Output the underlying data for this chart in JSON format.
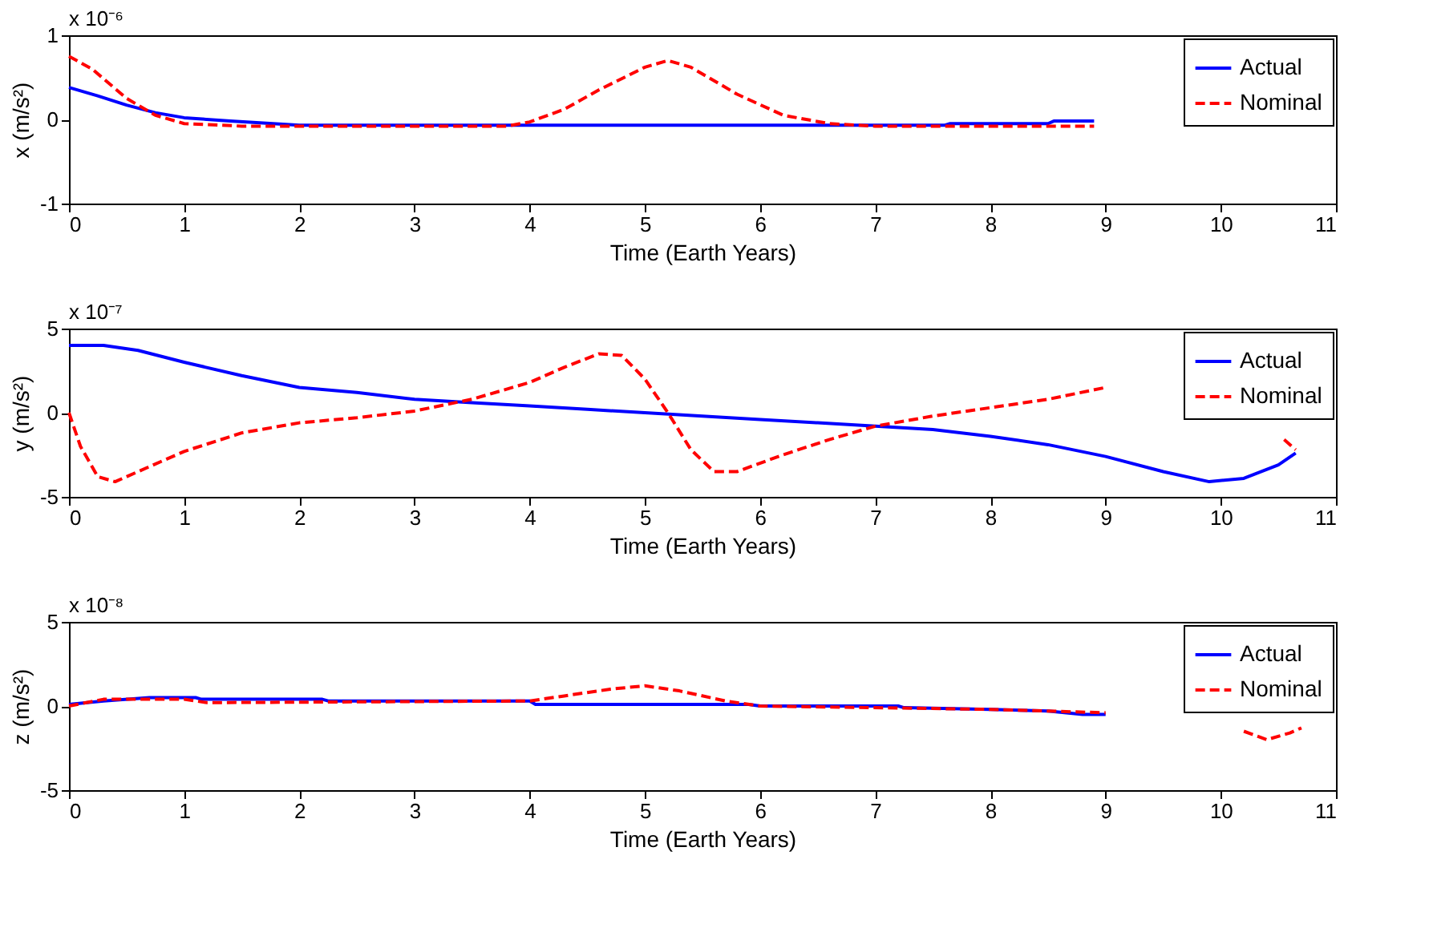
{
  "chart_data": [
    {
      "type": "line",
      "xlabel": "Time (Earth Years)",
      "ylabel": "x (m/s²)",
      "annotations": [
        "x 10⁻⁶"
      ],
      "xlim": [
        0,
        11
      ],
      "xticks": [
        0,
        1,
        2,
        3,
        4,
        5,
        6,
        7,
        8,
        9,
        10,
        11
      ],
      "ylim": [
        -1,
        1
      ],
      "yticks": [
        -1,
        0,
        1
      ],
      "legend": "top right",
      "series": [
        {
          "name": "Actual",
          "color": "#0000ff",
          "line_style": "solid",
          "x": [
            0,
            0.25,
            0.5,
            0.75,
            1,
            1.4,
            2,
            3,
            4,
            5,
            6,
            7,
            7.6,
            7.65,
            8.5,
            8.55,
            8.9
          ],
          "values": [
            0.38,
            0.28,
            0.17,
            0.08,
            0.02,
            -0.02,
            -0.07,
            -0.07,
            -0.07,
            -0.07,
            -0.07,
            -0.07,
            -0.07,
            -0.05,
            -0.05,
            -0.02,
            -0.02
          ]
        },
        {
          "name": "Nominal",
          "color": "#ff0000",
          "line_style": "dashed",
          "x": [
            0,
            0.2,
            0.5,
            0.75,
            1,
            1.5,
            2,
            3,
            3.8,
            4,
            4.3,
            4.6,
            5,
            5.2,
            5.4,
            5.8,
            6.2,
            6.6,
            7,
            8,
            8.9
          ],
          "values": [
            0.75,
            0.6,
            0.25,
            0.05,
            -0.05,
            -0.08,
            -0.08,
            -0.08,
            -0.08,
            -0.03,
            0.12,
            0.35,
            0.62,
            0.7,
            0.62,
            0.3,
            0.05,
            -0.05,
            -0.08,
            -0.08,
            -0.08
          ]
        }
      ]
    },
    {
      "type": "line",
      "xlabel": "Time (Earth Years)",
      "ylabel": "y (m/s²)",
      "annotations": [
        "x 10⁻⁷"
      ],
      "xlim": [
        0,
        11
      ],
      "xticks": [
        0,
        1,
        2,
        3,
        4,
        5,
        6,
        7,
        8,
        9,
        10,
        11
      ],
      "ylim": [
        -5,
        5
      ],
      "yticks": [
        -5,
        0,
        5
      ],
      "legend": "top right",
      "series": [
        {
          "name": "Actual",
          "color": "#0000ff",
          "line_style": "solid",
          "x": [
            0,
            0.3,
            0.6,
            1,
            1.5,
            2,
            2.5,
            3,
            3.5,
            4,
            4.5,
            5,
            5.5,
            6,
            6.5,
            7,
            7.5,
            8,
            8.5,
            9,
            9.5,
            9.9,
            10.2,
            10.5,
            10.65
          ],
          "values": [
            4,
            4,
            3.7,
            3.0,
            2.2,
            1.5,
            1.2,
            0.8,
            0.6,
            0.4,
            0.2,
            0,
            -0.2,
            -0.4,
            -0.6,
            -0.8,
            -1.0,
            -1.4,
            -1.9,
            -2.6,
            -3.5,
            -4.1,
            -3.9,
            -3.1,
            -2.4
          ]
        },
        {
          "name": "Nominal",
          "color": "#ff0000",
          "line_style": "dashed",
          "x": [
            0,
            0.1,
            0.25,
            0.4,
            0.7,
            1,
            1.5,
            2,
            2.5,
            3,
            3.5,
            4,
            4.3,
            4.6,
            4.8,
            5,
            5.2,
            5.4,
            5.6,
            5.8,
            6.2,
            6.6,
            7,
            7.5,
            8,
            8.5,
            9,
            9.8,
            10.55,
            10.65
          ],
          "values": [
            0,
            -2,
            -3.8,
            -4.1,
            -3.2,
            -2.3,
            -1.2,
            -0.6,
            -0.3,
            0.1,
            0.8,
            1.8,
            2.7,
            3.5,
            3.4,
            2.0,
            0,
            -2.2,
            -3.5,
            -3.5,
            -2.5,
            -1.6,
            -0.8,
            -0.2,
            0.3,
            0.8,
            1.5,
            null,
            -1.6,
            -2.2
          ]
        }
      ]
    },
    {
      "type": "line",
      "xlabel": "Time (Earth Years)",
      "ylabel": "z (m/s²)",
      "annotations": [
        "x 10⁻⁸"
      ],
      "xlim": [
        0,
        11
      ],
      "xticks": [
        0,
        1,
        2,
        3,
        4,
        5,
        6,
        7,
        8,
        9,
        10,
        11
      ],
      "ylim": [
        -5,
        5
      ],
      "yticks": [
        -5,
        0,
        5
      ],
      "legend": "top right",
      "series": [
        {
          "name": "Actual",
          "color": "#0000ff",
          "line_style": "solid",
          "x": [
            0,
            0.3,
            0.7,
            1.1,
            1.15,
            2.2,
            2.25,
            4,
            4.05,
            5.9,
            6,
            7.2,
            7.25,
            8,
            8.5,
            8.8,
            9
          ],
          "values": [
            0.1,
            0.3,
            0.5,
            0.5,
            0.4,
            0.4,
            0.3,
            0.3,
            0.1,
            0.1,
            0,
            0,
            -0.1,
            -0.2,
            -0.3,
            -0.5,
            -0.5
          ]
        },
        {
          "name": "Nominal",
          "color": "#ff0000",
          "line_style": "dashed",
          "x": [
            0,
            0.3,
            1,
            1.2,
            4,
            4.3,
            4.7,
            5,
            5.3,
            5.7,
            6,
            8,
            9,
            9.6,
            10.2,
            10.4,
            10.6,
            10.7
          ],
          "values": [
            0,
            0.4,
            0.4,
            0.2,
            0.3,
            0.6,
            1.0,
            1.2,
            0.9,
            0.3,
            0,
            -0.2,
            -0.4,
            null,
            -1.5,
            -2.0,
            -1.6,
            -1.3
          ]
        }
      ]
    }
  ]
}
